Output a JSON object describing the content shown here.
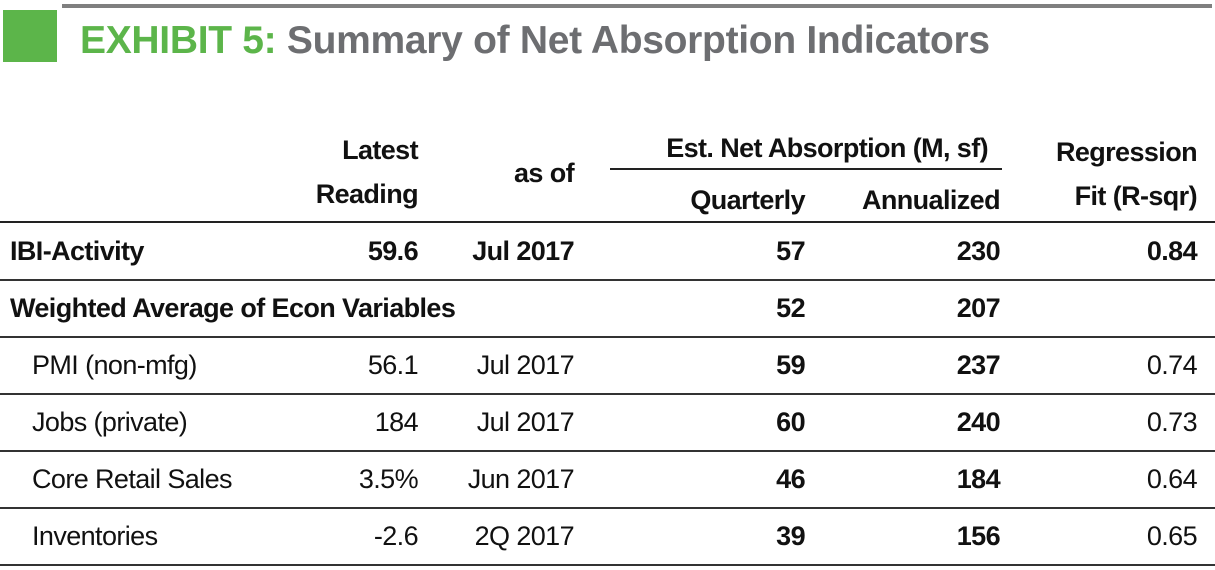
{
  "title": {
    "label": "EXHIBIT 5:",
    "text": "Summary of Net Absorption Indicators"
  },
  "table": {
    "headers": {
      "latest": [
        "Latest",
        "Reading"
      ],
      "as_of": "as of",
      "group": "Est. Net Absorption (M, sf)",
      "quarterly": "Quarterly",
      "annualized": "Annualized",
      "regression": [
        "Regression",
        "Fit (R-sqr)"
      ]
    },
    "rows": [
      {
        "label": "IBI-Activity",
        "bold": true,
        "indent": false,
        "cells": [
          59.6,
          "Jul 2017",
          57,
          230,
          0.84
        ]
      },
      {
        "label": "Weighted Average of Econ Variables",
        "bold": true,
        "indent": false,
        "cells": [
          null,
          null,
          52,
          207,
          null
        ]
      },
      {
        "label": "PMI (non-mfg)",
        "bold": false,
        "indent": true,
        "cells": [
          56.1,
          "Jul 2017",
          59,
          237,
          0.74
        ]
      },
      {
        "label": "Jobs (private)",
        "bold": false,
        "indent": true,
        "cells": [
          184,
          "Jul 2017",
          60,
          240,
          0.73
        ]
      },
      {
        "label": "Core Retail Sales",
        "bold": false,
        "indent": true,
        "cells": [
          "3.5%",
          "Jun 2017",
          46,
          184,
          0.64
        ]
      },
      {
        "label": "Inventories",
        "bold": false,
        "indent": true,
        "cells": [
          -2.6,
          "2Q 2017",
          39,
          156,
          0.65
        ]
      }
    ]
  }
}
